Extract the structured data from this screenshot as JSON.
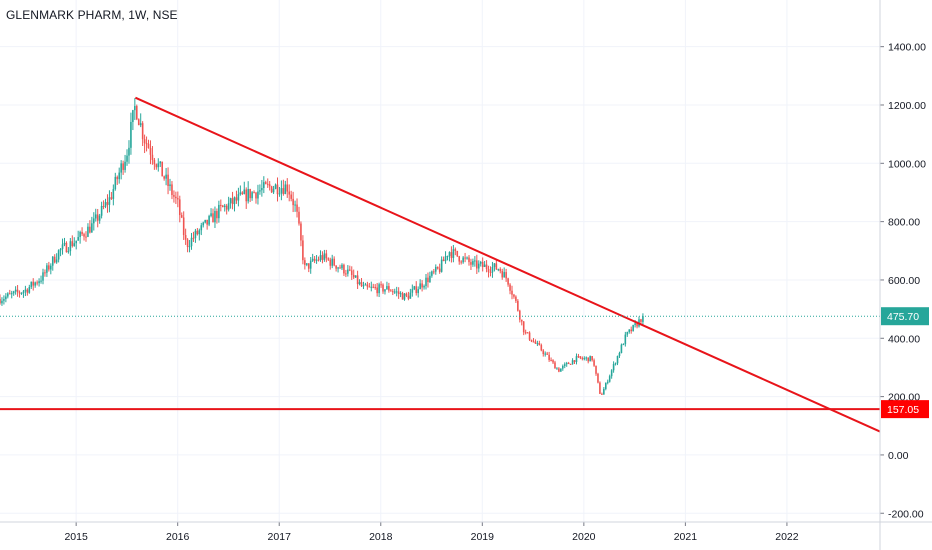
{
  "header": {
    "title": "GLENMARK PHARM, 1W, NSE"
  },
  "colors": {
    "up": "#26a69a",
    "down": "#ef5350",
    "trendline": "#e8141a",
    "price_badge": "#26a69a",
    "support_badge": "#ff0000",
    "grid": "#f0f3fa",
    "axis_line": "#d1d4dc"
  },
  "chart_data": {
    "type": "candlestick",
    "title": "GLENMARK PHARM, 1W, NSE",
    "timeframe": "1W",
    "exchange": "NSE",
    "xlabel": "",
    "ylabel": "",
    "ylim": [
      -230,
      1560
    ],
    "xlim": [
      "2014-04",
      "2022-12"
    ],
    "y_ticks": [
      "1400.00",
      "1200.00",
      "1000.00",
      "800.00",
      "600.00",
      "400.00",
      "200.00",
      "0.00",
      "-200.00"
    ],
    "x_ticks": [
      "2015",
      "2016",
      "2017",
      "2018",
      "2019",
      "2020",
      "2021",
      "2022"
    ],
    "grid": true,
    "last_price": {
      "value": 475.7,
      "label": "475.70"
    },
    "support_level": {
      "value": 157.05,
      "label": "157.05"
    },
    "trendline": {
      "from": {
        "date": "2015-08",
        "value": 1225
      },
      "to": {
        "date": "2022-12",
        "value": 80
      }
    },
    "price_path": [
      [
        "2014-04",
        535
      ],
      [
        "2014-07",
        565
      ],
      [
        "2014-09",
        610
      ],
      [
        "2014-11",
        700
      ],
      [
        "2015-01",
        735
      ],
      [
        "2015-03",
        790
      ],
      [
        "2015-05",
        880
      ],
      [
        "2015-07",
        1040
      ],
      [
        "2015-08",
        1200
      ],
      [
        "2015-09",
        1090
      ],
      [
        "2015-11",
        975
      ],
      [
        "2016-01",
        860
      ],
      [
        "2016-02",
        720
      ],
      [
        "2016-04",
        780
      ],
      [
        "2016-06",
        840
      ],
      [
        "2016-09",
        890
      ],
      [
        "2016-12",
        920
      ],
      [
        "2017-02",
        920
      ],
      [
        "2017-03",
        840
      ],
      [
        "2017-04",
        640
      ],
      [
        "2017-06",
        680
      ],
      [
        "2017-09",
        630
      ],
      [
        "2017-11",
        570
      ],
      [
        "2018-02",
        570
      ],
      [
        "2018-04",
        540
      ],
      [
        "2018-06",
        590
      ],
      [
        "2018-08",
        640
      ],
      [
        "2018-09",
        700
      ],
      [
        "2018-12",
        650
      ],
      [
        "2019-03",
        640
      ],
      [
        "2019-04",
        600
      ],
      [
        "2019-05",
        520
      ],
      [
        "2019-06",
        420
      ],
      [
        "2019-08",
        360
      ],
      [
        "2019-10",
        290
      ],
      [
        "2019-12",
        330
      ],
      [
        "2020-02",
        330
      ],
      [
        "2020-03",
        200
      ],
      [
        "2020-04",
        270
      ],
      [
        "2020-05",
        340
      ],
      [
        "2020-06",
        410
      ],
      [
        "2020-07",
        440
      ],
      [
        "2020-08",
        476
      ]
    ]
  }
}
